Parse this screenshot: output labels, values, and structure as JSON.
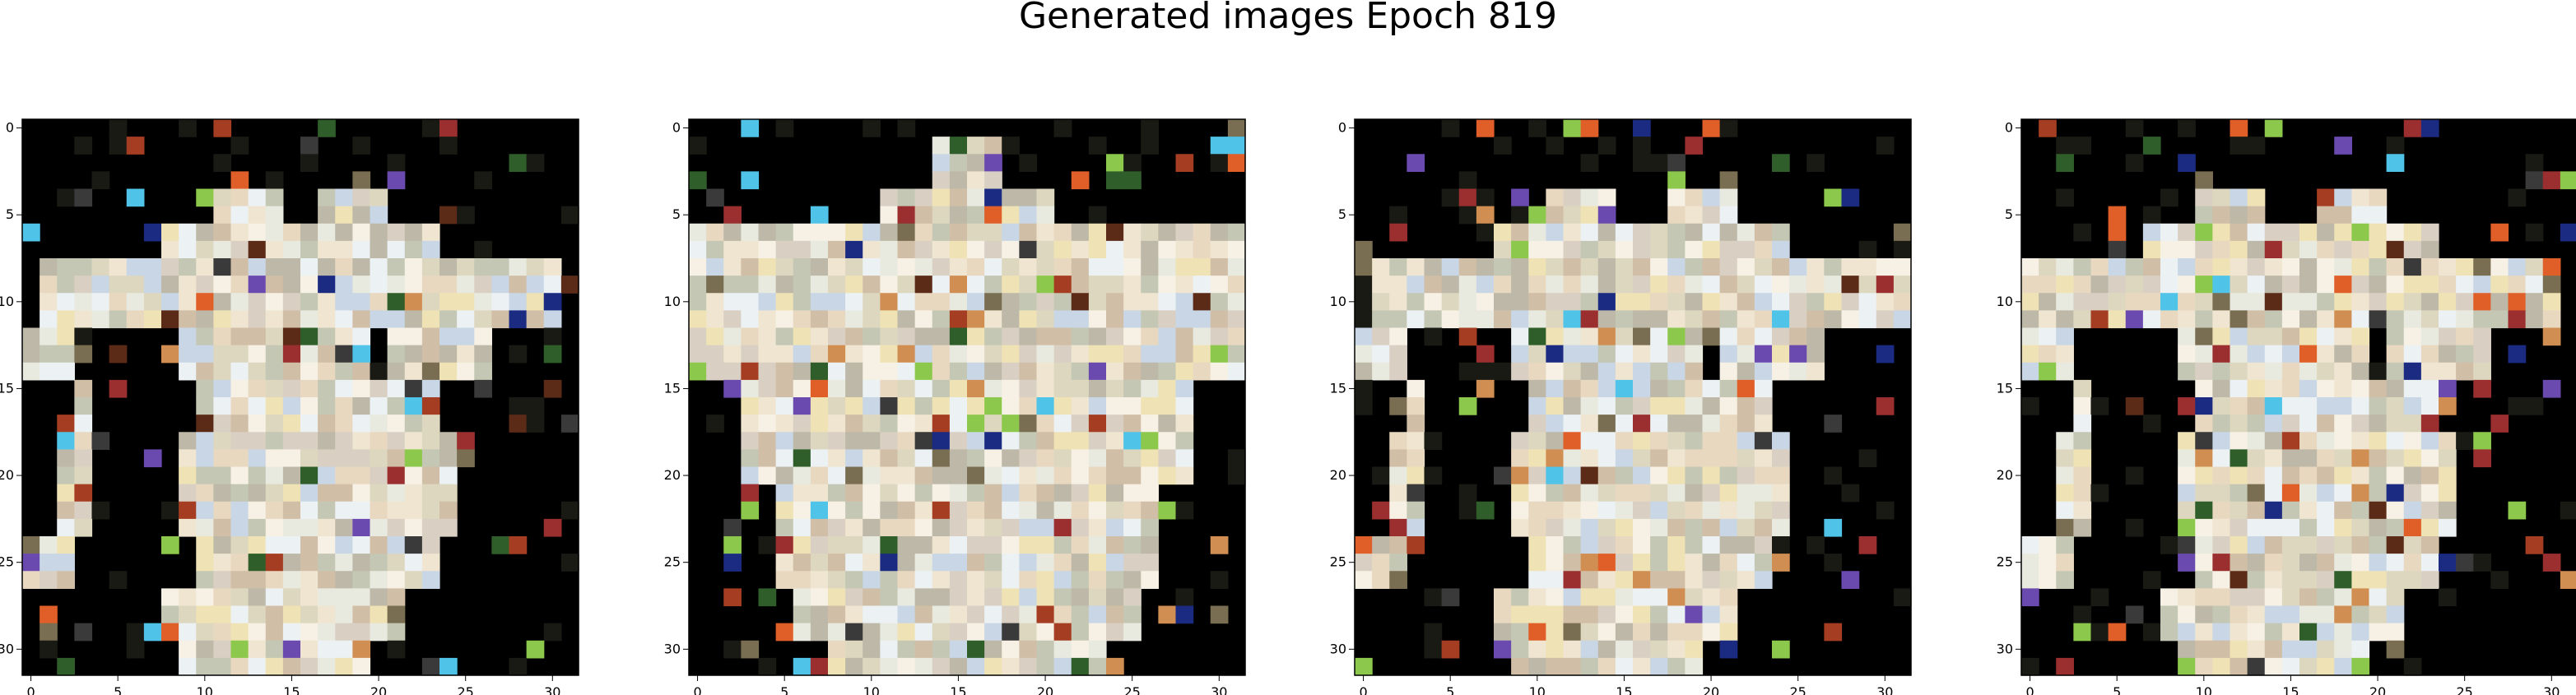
{
  "figure": {
    "title": "Generated images Epoch 819"
  },
  "axes": {
    "x_ticks": [
      "0",
      "5",
      "10",
      "15",
      "20",
      "25",
      "30"
    ],
    "y_ticks": [
      "0",
      "5",
      "10",
      "15",
      "20",
      "25",
      "30"
    ],
    "x_tick_values": [
      0,
      5,
      10,
      15,
      20,
      25,
      30
    ],
    "y_tick_values": [
      0,
      5,
      10,
      15,
      20,
      25,
      30
    ]
  },
  "image_grid": {
    "rows": 32,
    "cols": 32,
    "count": 4,
    "background": "#000000",
    "palette": [
      "#f6f1e4",
      "#e9eadf",
      "#d9d0c3",
      "#efe5d0",
      "#c8d6e5",
      "#ddd7bf",
      "#efe2b5",
      "#c4c7b3",
      "#bdb8a7",
      "#e8d8c0",
      "#ecf1f4",
      "#d1bea6"
    ],
    "accent_colors": [
      "#5b2b18",
      "#a43d21",
      "#6b4ab0",
      "#2f5e2a",
      "#8cc84b",
      "#e05e28",
      "#4fc3e8",
      "#1b2b82",
      "#9b2f2f",
      "#7a6e52",
      "#3a3a3a",
      "#d18e52"
    ]
  }
}
